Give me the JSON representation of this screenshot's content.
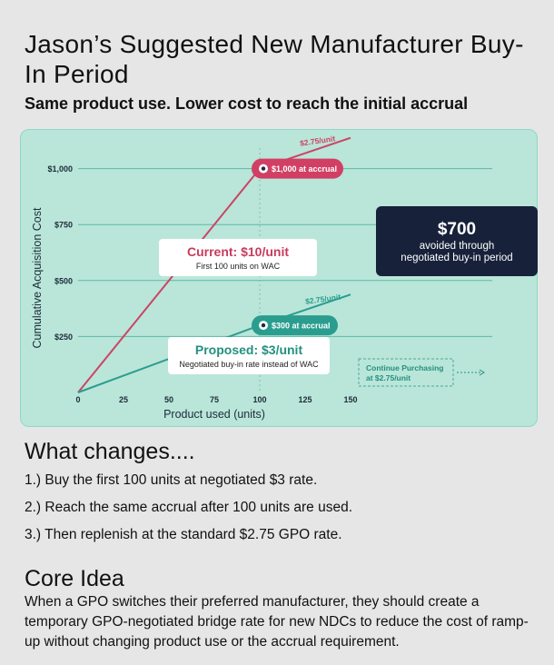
{
  "page": {
    "title": "Jason’s Suggested New Manufacturer Buy-In Period",
    "subtitle": "Same product use. Lower cost to reach the initial accrual"
  },
  "chart_data": {
    "type": "line",
    "xlabel": "Product used (units)",
    "ylabel": "Cumulative Acquisition Cost",
    "xlim": [
      0,
      150
    ],
    "ylim": [
      0,
      1140
    ],
    "x_ticks": [
      "0",
      "25",
      "50",
      "75",
      "100",
      "125",
      "150"
    ],
    "x_tick_values": [
      0,
      25,
      50,
      75,
      100,
      125,
      150
    ],
    "y_ticks": [
      "$250",
      "$500",
      "$750",
      "$1,000"
    ],
    "y_tick_values": [
      250,
      500,
      750,
      1000
    ],
    "grid": "horizontal",
    "series": [
      {
        "name": "Current",
        "color": "#cc4466",
        "x": [
          0,
          100,
          150
        ],
        "y": [
          0,
          1000,
          1137.5
        ]
      },
      {
        "name": "Proposed",
        "color": "#2a9d8f",
        "x": [
          0,
          100,
          150
        ],
        "y": [
          0,
          300,
          437.5
        ]
      }
    ],
    "segment_labels": {
      "current_tail": "$2.75/unit",
      "proposed_tail": "$2.75/unit"
    },
    "markers": [
      {
        "x": 100,
        "y": 1000,
        "label": "$1,000 at accrual",
        "color": "#d23f64"
      },
      {
        "x": 100,
        "y": 300,
        "label": "$300 at accrual",
        "color": "#2a9d8f"
      }
    ],
    "callouts": {
      "current": {
        "title": "Current: $10/unit",
        "note": "First 100 units on WAC"
      },
      "proposed": {
        "title": "Proposed: $3/unit",
        "note": "Negotiated buy-in rate instead of WAC"
      },
      "savings": {
        "amount": "$700",
        "line1": "avoided through",
        "line2": "negotiated buy-in period"
      },
      "continue": {
        "line1": "Continue Purchasing",
        "line2": "at $2.75/unit"
      }
    }
  },
  "changes": {
    "heading": "What changes....",
    "steps": [
      "1.) Buy the first 100 units at negotiated $3 rate.",
      "2.) Reach the same accrual after 100 units are used.",
      "3.) Then replenish at the standard $2.75 GPO rate."
    ]
  },
  "core": {
    "heading": "Core Idea",
    "text": "When a GPO switches their preferred manufacturer, they should create a temporary GPO-negotiated bridge rate for new NDCs to reduce the cost of ramp-up without changing product use or the accrual requirement."
  }
}
